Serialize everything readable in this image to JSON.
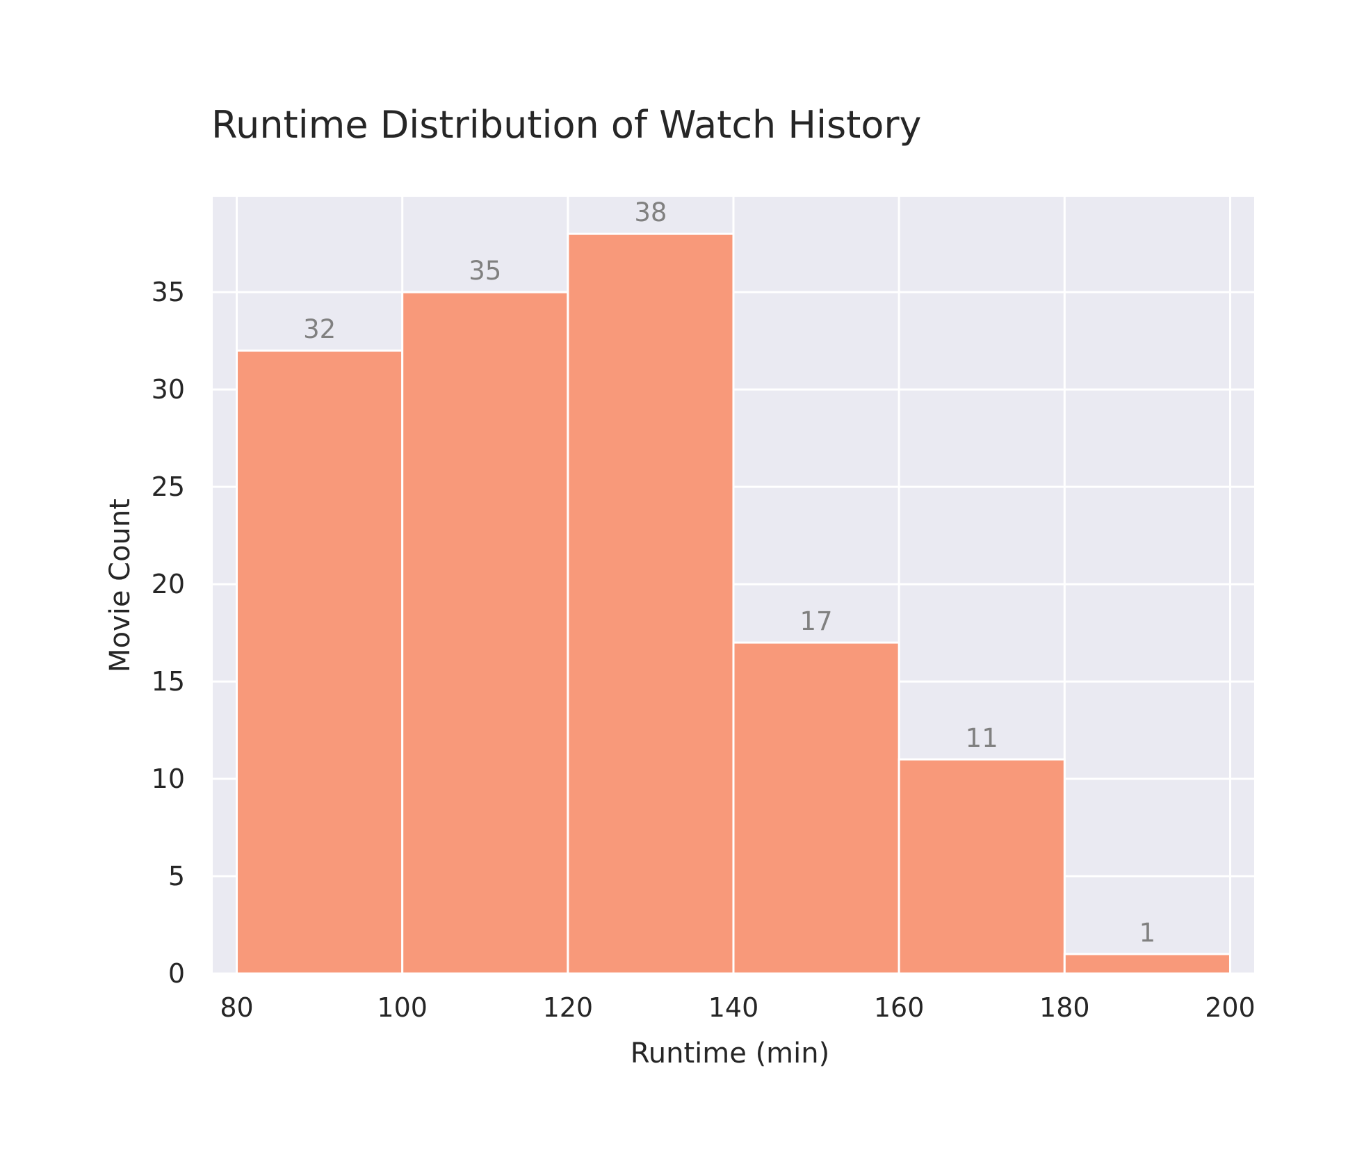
{
  "chart_data": {
    "type": "bar",
    "title": "Runtime Distribution of Watch History",
    "xlabel": "Runtime (min)",
    "ylabel": "Movie Count",
    "bins": [
      {
        "start": 80,
        "end": 100,
        "count": 32,
        "label": "32"
      },
      {
        "start": 100,
        "end": 120,
        "count": 35,
        "label": "35"
      },
      {
        "start": 120,
        "end": 140,
        "count": 38,
        "label": "38"
      },
      {
        "start": 140,
        "end": 160,
        "count": 17,
        "label": "17"
      },
      {
        "start": 160,
        "end": 180,
        "count": 11,
        "label": "11"
      },
      {
        "start": 180,
        "end": 200,
        "count": 1,
        "label": "1"
      }
    ],
    "xlim": [
      77.1,
      202.9
    ],
    "ylim": [
      0,
      39.9
    ],
    "xticks": [
      {
        "value": 80,
        "label": "80"
      },
      {
        "value": 100,
        "label": "100"
      },
      {
        "value": 120,
        "label": "120"
      },
      {
        "value": 140,
        "label": "140"
      },
      {
        "value": 160,
        "label": "160"
      },
      {
        "value": 180,
        "label": "180"
      },
      {
        "value": 200,
        "label": "200"
      }
    ],
    "yticks": [
      {
        "value": 0,
        "label": "0"
      },
      {
        "value": 5,
        "label": "5"
      },
      {
        "value": 10,
        "label": "10"
      },
      {
        "value": 15,
        "label": "15"
      },
      {
        "value": 20,
        "label": "20"
      },
      {
        "value": 25,
        "label": "25"
      },
      {
        "value": 30,
        "label": "30"
      },
      {
        "value": 35,
        "label": "35"
      }
    ],
    "grid": true,
    "colors": {
      "bar": "#f8997a",
      "plot_background": "#eaeaf2",
      "grid": "#ffffff",
      "data_label": "#808080",
      "text": "#262626"
    }
  }
}
